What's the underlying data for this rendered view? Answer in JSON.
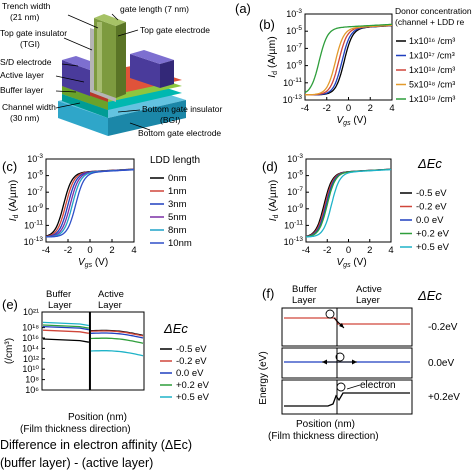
{
  "figure": {
    "panel_a": {
      "label": "(a)",
      "annotations": {
        "trench_width": [
          "Trench width",
          "(21 nm)"
        ],
        "gate_length": "gate length (7 nm)",
        "top_gate_insulator": [
          "Top gate insulator",
          "(TGI)"
        ],
        "top_gate_electrode": "Top gate electrode",
        "sd_electrode": "S/D electrode",
        "active_layer": "Active layer",
        "buffer_layer": "Buffer layer",
        "channel_width": [
          "Channel width",
          "(30 nm)"
        ],
        "bottom_gate_insulator": [
          "Bottom gate insulator",
          "(BGI)"
        ],
        "bottom_gate_electrode": "Bottom gate electrode"
      },
      "colors": {
        "bottom_gate": "#2fa6c9",
        "bgi": "#00b8b0",
        "buffer": "#8dc63f",
        "active": "#e0533a",
        "sd": "#4a3b9b",
        "tgi": "#8a8a8a",
        "top_gate": "#6e8f3a"
      }
    },
    "panel_e": {
      "region_labels": {
        "buffer": [
          "Buffer",
          "Layer"
        ],
        "active": [
          "Active",
          "Layer"
        ]
      },
      "xlabel_lines": [
        "Position (nm)",
        "(Film thickness direction)"
      ]
    },
    "panel_f": {
      "region_labels": {
        "buffer": [
          "Buffer",
          "Layer"
        ],
        "active": [
          "Active",
          "Layer"
        ]
      },
      "legend_title": "ΔEc",
      "row_labels": [
        "-0.2eV",
        "0.0eV",
        "+0.2eV"
      ],
      "ylabel": "Energy (eV)",
      "electron_label": "electron",
      "xlabel_lines": [
        "Position (nm)",
        "(Film thickness direction)"
      ]
    }
  },
  "caption": {
    "line1": "Difference in electron affinity (ΔEc)",
    "line2": "(buffer layer) - (active layer)"
  },
  "chart_data": [
    {
      "panel": "(b)",
      "type": "line",
      "scale_y": "log",
      "xlabel": "Vgs (V)",
      "ylabel": "Id (A/µm)",
      "xlim": [
        -4,
        4
      ],
      "ylim_exp": [
        -13,
        -3
      ],
      "x_ticks": [
        "-4",
        "-2",
        "0",
        "2",
        "4"
      ],
      "y_ticks": [
        "10-3",
        "10-5",
        "10-7",
        "10-9",
        "10-11",
        "10-13"
      ],
      "legend_title": [
        "Donor concentration",
        "(channel + LDD re"
      ],
      "series": [
        {
          "name": "1x10¹⁶ /cm³",
          "color": "#000000",
          "v_on": -0.4
        },
        {
          "name": "1x10¹⁷ /cm³",
          "color": "#1f3fbf",
          "v_on": -0.6
        },
        {
          "name": "1x10¹⁸ /cm³",
          "color": "#d0463a",
          "v_on": -0.9
        },
        {
          "name": "5x10¹⁸ /cm³",
          "color": "#e39a2c",
          "v_on": -1.2
        },
        {
          "name": "1x10¹⁹ /cm³",
          "color": "#2e9e3b",
          "v_on": -2.7
        }
      ]
    },
    {
      "panel": "(c)",
      "type": "line",
      "scale_y": "log",
      "xlabel": "Vgs (V)",
      "ylabel": "Id (A/µm)",
      "xlim": [
        -4,
        4
      ],
      "ylim_exp": [
        -13,
        -3
      ],
      "x_ticks": [
        "-4",
        "-2",
        "0",
        "2",
        "4"
      ],
      "y_ticks": [
        "10-3",
        "10-5",
        "10-7",
        "10-9",
        "10-11",
        "10-13"
      ],
      "legend_title": "LDD length",
      "series": [
        {
          "name": "0nm",
          "color": "#000000",
          "v_on": -2.4
        },
        {
          "name": "1nm",
          "color": "#d0463a",
          "v_on": -2.2
        },
        {
          "name": "3nm",
          "color": "#1f3fbf",
          "v_on": -2.0
        },
        {
          "name": "5nm",
          "color": "#7a2fa6",
          "v_on": -1.8
        },
        {
          "name": "8nm",
          "color": "#1fa3c8",
          "v_on": -1.6
        },
        {
          "name": "10nm",
          "color": "#2f4fc8",
          "v_on": -1.3
        }
      ]
    },
    {
      "panel": "(d)",
      "type": "line",
      "scale_y": "log",
      "xlabel": "Vgs (V)",
      "ylabel": "Id (A/µm)",
      "xlim": [
        -4,
        4
      ],
      "ylim_exp": [
        -13,
        -3
      ],
      "x_ticks": [
        "-4",
        "-2",
        "0",
        "2",
        "4"
      ],
      "y_ticks": [
        "10-3",
        "10-5",
        "10-7",
        "10-9",
        "10-11",
        "10-13"
      ],
      "legend_title": "ΔEc",
      "series": [
        {
          "name": "-0.5 eV",
          "color": "#000000",
          "v_on": -2.3
        },
        {
          "name": "-0.2 eV",
          "color": "#d0463a",
          "v_on": -2.2
        },
        {
          "name": "0.0 eV",
          "color": "#1f3fbf",
          "v_on": -2.1
        },
        {
          "name": "+0.2 eV",
          "color": "#2e9e3b",
          "v_on": -2.0
        },
        {
          "name": "+0.5 eV",
          "color": "#1fb3c8",
          "v_on": -1.6
        }
      ]
    },
    {
      "panel": "(e)",
      "type": "line",
      "scale_y": "log",
      "ylabel": "(/cm³)",
      "ylim_exp": [
        6,
        21
      ],
      "y_ticks": [
        "10²¹",
        "10¹⁸",
        "10¹⁶",
        "10¹⁴",
        "10¹²",
        "10¹⁰",
        "10⁸",
        "10⁶"
      ],
      "legend_title": "ΔEc",
      "series": [
        {
          "name": "-0.5 eV",
          "color": "#000000",
          "buffer_exp": 15.8,
          "active_exp": 17.4
        },
        {
          "name": "-0.2 eV",
          "color": "#d0463a",
          "buffer_exp": 17.5,
          "active_exp": 17.3
        },
        {
          "name": "0.0 eV",
          "color": "#1f3fbf",
          "buffer_exp": 18.2,
          "active_exp": 16.9
        },
        {
          "name": "+0.2 eV",
          "color": "#2e9e3b",
          "buffer_exp": 18.5,
          "active_exp": 15.9
        },
        {
          "name": "+0.5 eV",
          "color": "#1fb3c8",
          "buffer_exp": 19.0,
          "active_exp": 13.5
        }
      ]
    }
  ]
}
